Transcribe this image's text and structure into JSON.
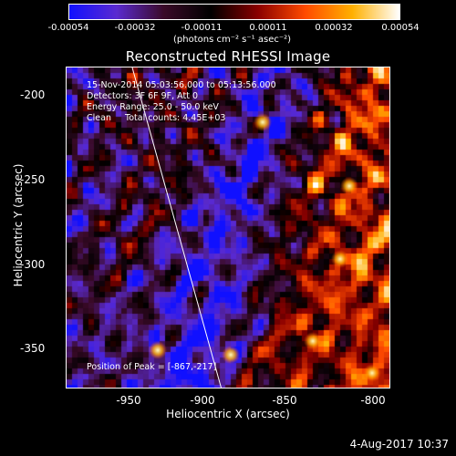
{
  "colorbar": {
    "tick_labels": [
      "-0.00054",
      "-0.00032",
      "-0.00011",
      "0.00011",
      "0.00032",
      "0.00054"
    ],
    "units": "(photons cm⁻² s⁻¹ asec⁻²)",
    "colors": [
      "#1010ff",
      "#5a2ad0",
      "#3a0a28",
      "#000000",
      "#8a0000",
      "#ff4a00",
      "#ffb000",
      "#ffffff"
    ]
  },
  "title": "Reconstructed RHESSI Image",
  "info": {
    "time_range": "15-Nov-2014 05:03:56.000 to 05:13:56.000",
    "detectors": "Detectors: 3F 6F 9F, Att 0",
    "energy_range": "Energy Range: 25.0 - 50.0 keV",
    "method": "Clean     Total counts: 4.45E+03",
    "peak": "Position of Peak = [-867,-217]"
  },
  "axes": {
    "xlabel": "Heliocentric X (arcsec)",
    "ylabel": "Heliocentric Y (arcsec)",
    "x_ticks": [
      "-950",
      "-900",
      "-850",
      "-800"
    ],
    "y_ticks": [
      "-200",
      "-250",
      "-300",
      "-350"
    ],
    "xlim": [
      -980,
      -790
    ],
    "ylim": [
      -375,
      -187
    ]
  },
  "timestamp": "4-Aug-2017 10:37"
}
